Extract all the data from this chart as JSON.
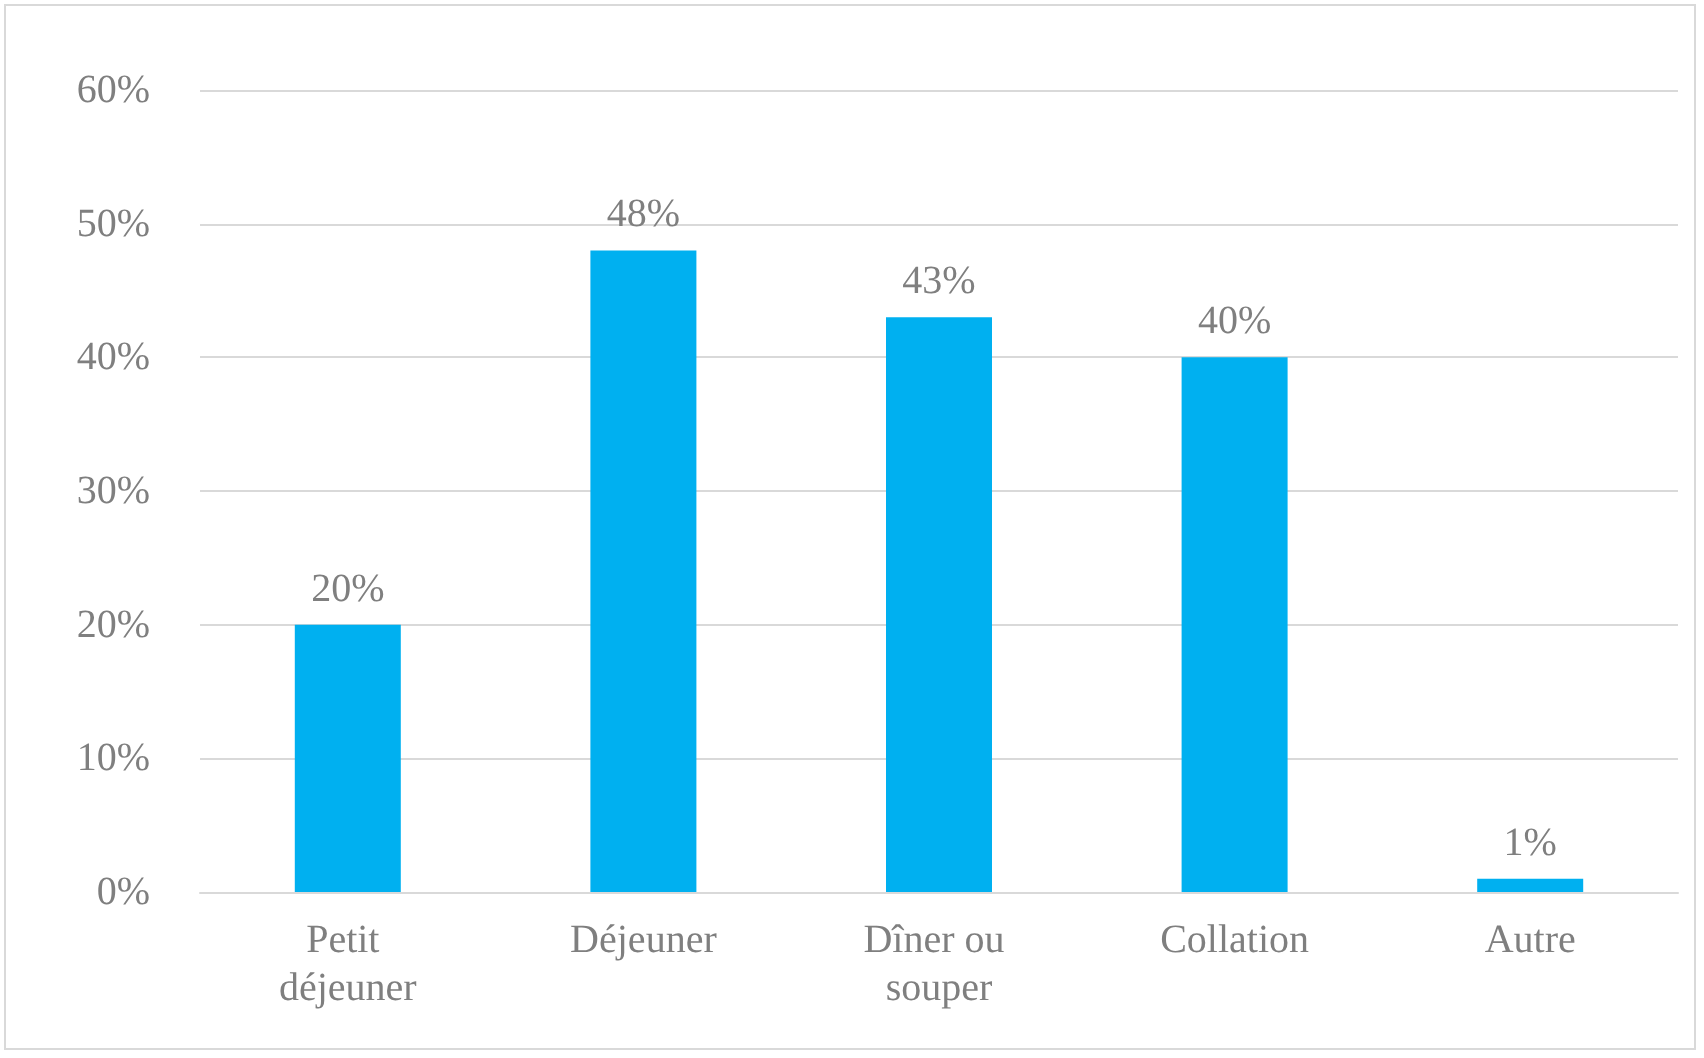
{
  "chart_data": {
    "type": "bar",
    "categories": [
      "Petit déjeuner",
      "Déjeuner",
      "Dîner ou souper",
      "Collation",
      "Autre"
    ],
    "values": [
      20,
      48,
      43,
      40,
      1
    ],
    "value_labels": [
      "20%",
      "48%",
      "43%",
      "40%",
      "1%"
    ],
    "color": "#00b0f0",
    "ylim": [
      0,
      60
    ],
    "yticks": [
      {
        "value": 0,
        "label": "0%"
      },
      {
        "value": 10,
        "label": "10%"
      },
      {
        "value": 20,
        "label": "20%"
      },
      {
        "value": 30,
        "label": "30%"
      },
      {
        "value": 40,
        "label": "40%"
      },
      {
        "value": 50,
        "label": "50%"
      },
      {
        "value": 60,
        "label": "60%"
      }
    ],
    "grid": "y"
  }
}
